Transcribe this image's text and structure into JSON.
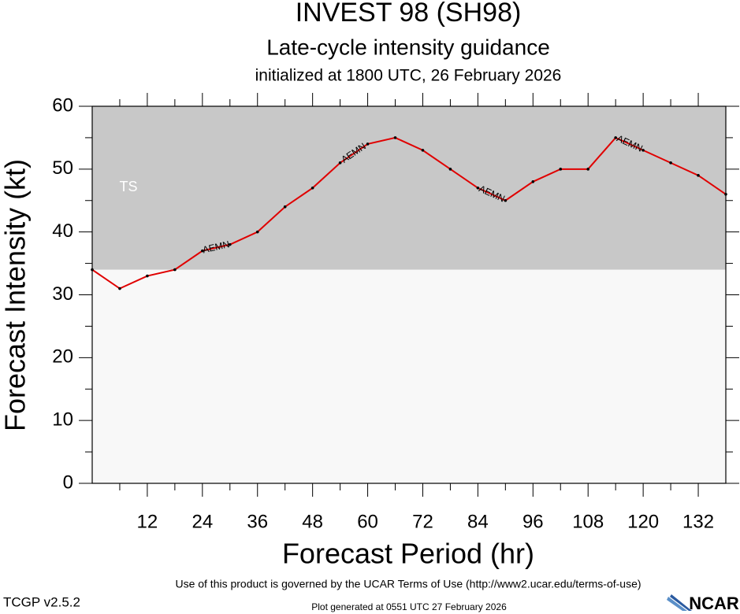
{
  "chart_data": {
    "type": "line",
    "title": "INVEST 98 (SH98)",
    "subtitle": "Late-cycle intensity guidance",
    "initialized": "initialized at 1800 UTC, 26 February 2026",
    "ylabel": "Forecast Intensity (kt)",
    "xlabel": "Forecast Period (hr)",
    "x": [
      0,
      6,
      12,
      18,
      24,
      30,
      36,
      42,
      48,
      54,
      60,
      66,
      72,
      78,
      84,
      90,
      96,
      102,
      108,
      114,
      120,
      126,
      132,
      138
    ],
    "series": [
      {
        "name": "AEMN",
        "color": "#e00000",
        "values": [
          34,
          31,
          33,
          34,
          37,
          38,
          40,
          44,
          47,
          51,
          54,
          55,
          53,
          50,
          47,
          45,
          48,
          50,
          50,
          55,
          53,
          51,
          49,
          46
        ]
      }
    ],
    "xlim": [
      0,
      138
    ],
    "xticks": [
      12,
      24,
      36,
      48,
      60,
      72,
      84,
      96,
      108,
      120,
      132
    ],
    "xminorticks": [
      6,
      18,
      30,
      42,
      54,
      66,
      78,
      90,
      102,
      114,
      126
    ],
    "ylim": [
      0,
      60
    ],
    "yticks": [
      0,
      10,
      20,
      30,
      40,
      50,
      60
    ],
    "yminorticks": [
      5,
      15,
      25,
      35,
      45,
      55
    ],
    "ts_threshold": 34,
    "ts_label": "TS",
    "terms": "Use of this product is governed by the UCAR Terms of Use (http://www2.ucar.edu/terms-of-use)",
    "version": "TCGP v2.5.2",
    "generated": "Plot generated at 0551 UTC   27 February 2026",
    "logo": "NCAR"
  }
}
